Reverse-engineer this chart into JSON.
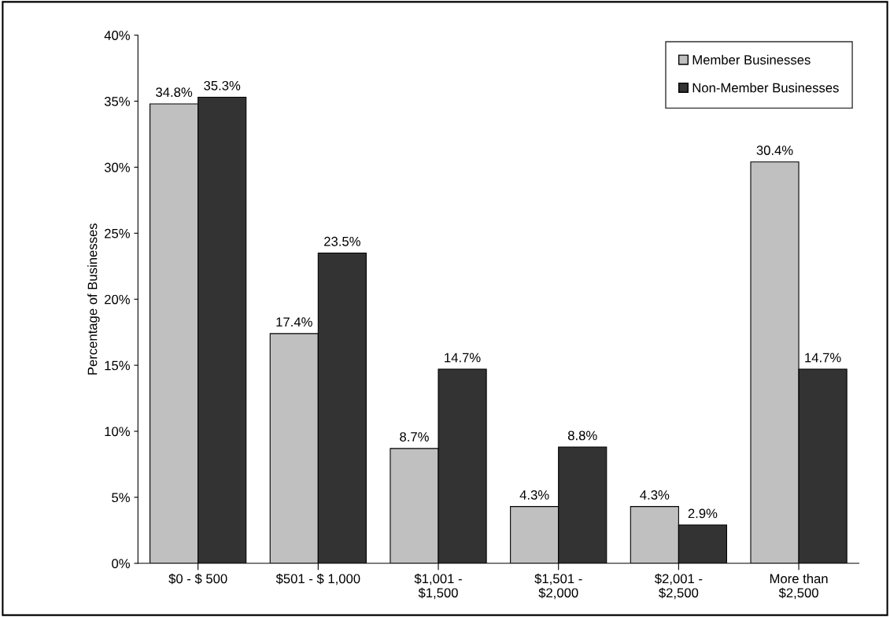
{
  "chart_data": {
    "type": "bar",
    "ylabel": "Percentage of Businesses",
    "categories": [
      "$0 - $ 500",
      "$501 - $ 1,000",
      "$1,001 -\n$1,500",
      "$1,501 -\n$2,000",
      "$2,001 -\n$2,500",
      "More than\n$2,500"
    ],
    "series": [
      {
        "name": "Member Businesses",
        "color": "#c0c0c0",
        "values": [
          34.8,
          17.4,
          8.7,
          4.3,
          4.3,
          30.4
        ],
        "value_labels": [
          "34.8%",
          "17.4%",
          "8.7%",
          "4.3%",
          "4.3%",
          "30.4%"
        ]
      },
      {
        "name": "Non-Member Businesses",
        "color": "#333333",
        "values": [
          35.3,
          23.5,
          14.7,
          8.8,
          2.9,
          14.7
        ],
        "value_labels": [
          "35.3%",
          "23.5%",
          "14.7%",
          "8.8%",
          "2.9%",
          "14.7%"
        ]
      }
    ],
    "ylim": [
      0,
      40
    ],
    "yticks": [
      {
        "value": 0,
        "label": "0%"
      },
      {
        "value": 5,
        "label": "5%"
      },
      {
        "value": 10,
        "label": "10%"
      },
      {
        "value": 15,
        "label": "15%"
      },
      {
        "value": 20,
        "label": "20%"
      },
      {
        "value": 25,
        "label": "25%"
      },
      {
        "value": 30,
        "label": "30%"
      },
      {
        "value": 35,
        "label": "35%"
      },
      {
        "value": 40,
        "label": "40%"
      }
    ],
    "grid": false,
    "legend": "top right"
  }
}
